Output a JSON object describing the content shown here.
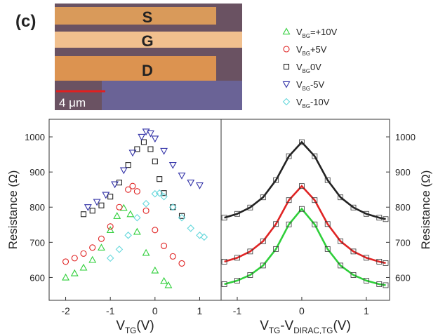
{
  "panel_label": "(c)",
  "image": {
    "labels": [
      "S",
      "G",
      "D"
    ],
    "scale_bar": "4 μm"
  },
  "chart_data": [
    {
      "type": "scatter",
      "xlabel": {
        "text": "V",
        "sub": "TG",
        "rest": "(V)"
      },
      "ylabel": "Resistance (Ω)",
      "xlim": [
        -2.37,
        1.48
      ],
      "ylim": [
        535,
        1050
      ],
      "xticks": [
        -2,
        -1,
        0,
        1
      ],
      "yticks": [
        600,
        700,
        800,
        900,
        1000
      ],
      "legend_var": {
        "text": "V",
        "sub": "BG"
      },
      "series": [
        {
          "name": "=+10V",
          "color": "#2fcf3a",
          "marker": "triangle-up",
          "x": [
            -2.0,
            -1.8,
            -1.6,
            -1.4,
            -1.2,
            -1.0,
            -0.85,
            -0.7,
            -0.55,
            -0.4,
            -0.2,
            0,
            0.2,
            0.3
          ],
          "values": [
            600,
            612,
            628,
            650,
            685,
            735,
            775,
            798,
            780,
            730,
            670,
            620,
            590,
            578
          ]
        },
        {
          "name": "+5V",
          "color": "#e02424",
          "marker": "circle",
          "x": [
            -2.0,
            -1.8,
            -1.6,
            -1.4,
            -1.2,
            -1.0,
            -0.8,
            -0.6,
            -0.5,
            -0.4,
            -0.2,
            0,
            0.2,
            0.4,
            0.6
          ],
          "values": [
            645,
            655,
            668,
            685,
            710,
            745,
            800,
            850,
            860,
            845,
            790,
            735,
            690,
            660,
            640
          ]
        },
        {
          "name": "0V",
          "color": "#222222",
          "marker": "square",
          "x": [
            -1.6,
            -1.4,
            -1.2,
            -1.0,
            -0.8,
            -0.6,
            -0.4,
            -0.25,
            -0.1,
            0,
            0.1,
            0.2,
            0.4,
            0.6
          ],
          "values": [
            780,
            790,
            805,
            830,
            870,
            920,
            965,
            985,
            965,
            930,
            880,
            840,
            800,
            775
          ]
        },
        {
          "name": "-5V",
          "color": "#3333a8",
          "marker": "triangle-down",
          "x": [
            -1.5,
            -1.3,
            -1.1,
            -0.9,
            -0.7,
            -0.5,
            -0.3,
            -0.2,
            -0.1,
            0,
            0.2,
            0.4,
            0.6,
            0.8,
            1.0
          ],
          "values": [
            800,
            815,
            835,
            865,
            905,
            955,
            1000,
            1015,
            1010,
            995,
            960,
            920,
            890,
            870,
            862
          ]
        },
        {
          "name": "-10V",
          "color": "#66d8dc",
          "marker": "diamond",
          "x": [
            -1.0,
            -0.8,
            -0.6,
            -0.4,
            -0.2,
            0,
            0.1,
            0.2,
            0.4,
            0.6,
            0.8,
            1.0,
            1.1
          ],
          "values": [
            655,
            680,
            720,
            770,
            810,
            838,
            840,
            830,
            800,
            770,
            740,
            720,
            715
          ]
        }
      ]
    },
    {
      "type": "line",
      "xlabel": {
        "text": "V",
        "sub": "TG",
        "rest": "-V",
        "sub2": "DIRAC,TG",
        "rest2": "(V)"
      },
      "ylabel": "Resistance (Ω)",
      "xlim": [
        -1.25,
        1.36
      ],
      "ylim": [
        535,
        1050
      ],
      "xticks": [
        -1,
        0,
        1
      ],
      "yticks": [
        600,
        700,
        800,
        900,
        1000
      ],
      "series": [
        {
          "color": "#222222",
          "x": [
            -1.2,
            -1.0,
            -0.8,
            -0.6,
            -0.4,
            -0.2,
            0,
            0.2,
            0.4,
            0.6,
            0.8,
            1.0,
            1.2,
            1.3
          ],
          "values": [
            770,
            781,
            799,
            828,
            877,
            945,
            985,
            945,
            877,
            828,
            799,
            781,
            770,
            766
          ]
        },
        {
          "color": "#e02424",
          "x": [
            -1.2,
            -1.0,
            -0.8,
            -0.6,
            -0.4,
            -0.2,
            0,
            0.2,
            0.4,
            0.6,
            0.8,
            1.0,
            1.2,
            1.3
          ],
          "values": [
            645,
            656,
            674,
            703,
            752,
            820,
            860,
            820,
            752,
            703,
            674,
            656,
            645,
            641
          ]
        },
        {
          "color": "#2fcf3a",
          "x": [
            -1.2,
            -1.0,
            -0.8,
            -0.6,
            -0.4,
            -0.2,
            0,
            0.2,
            0.4,
            0.6,
            0.8,
            1.0,
            1.2,
            1.3
          ],
          "values": [
            581,
            591,
            607,
            634,
            681,
            751,
            795,
            751,
            681,
            634,
            607,
            591,
            581,
            578
          ]
        }
      ]
    }
  ]
}
